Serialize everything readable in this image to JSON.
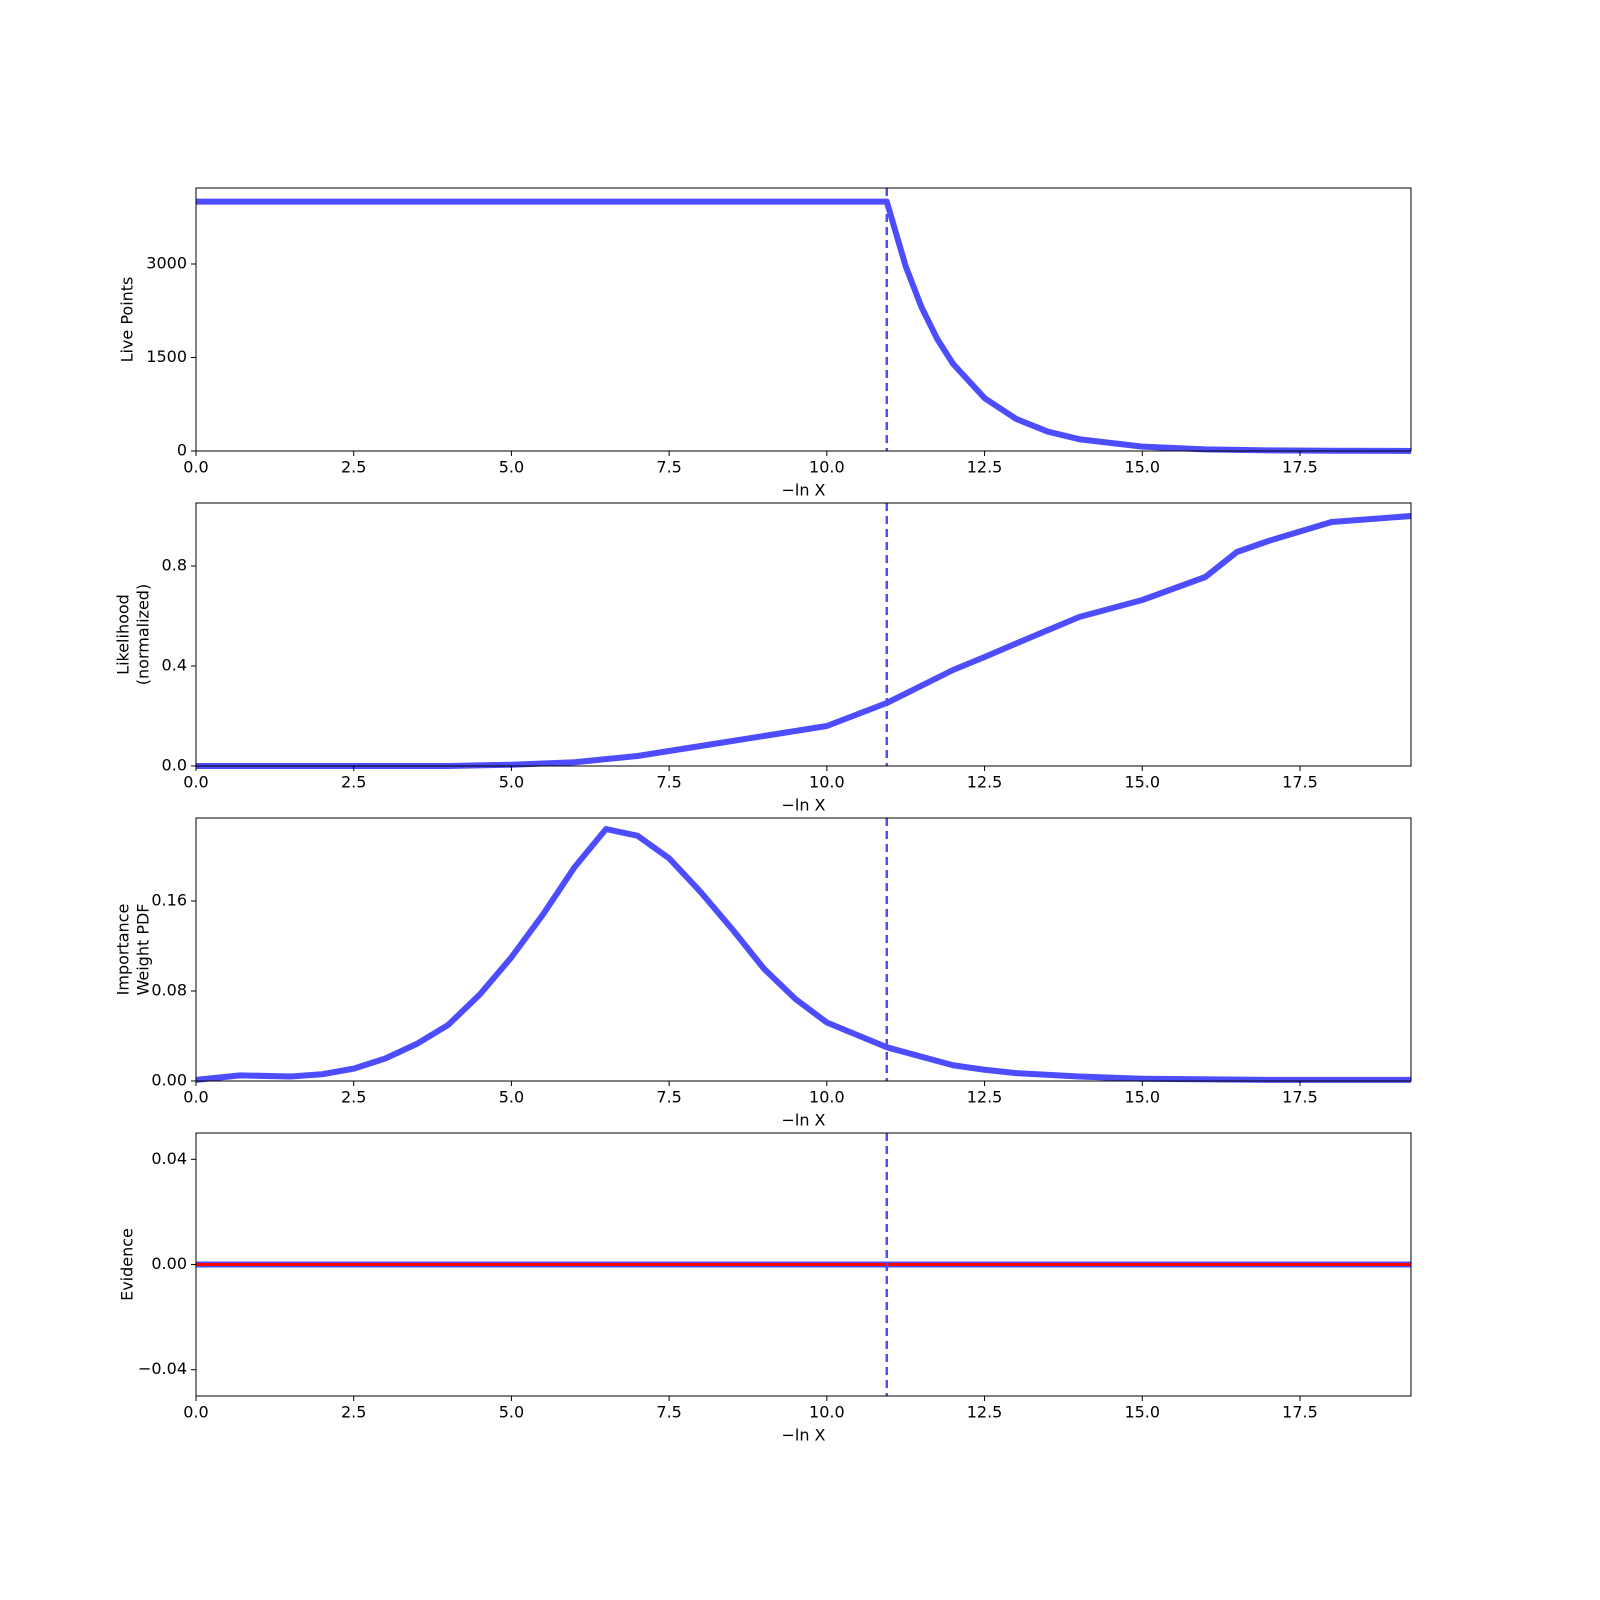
{
  "chart_data": [
    {
      "type": "line",
      "xlabel": "−ln X",
      "ylabel": [
        "Live Points"
      ],
      "x": [
        0,
        10.9,
        10.95,
        11.25,
        11.5,
        11.75,
        12,
        12.5,
        13,
        13.5,
        14,
        15,
        16,
        17,
        18,
        19.26
      ],
      "series": [
        {
          "color": "#4d4dff",
          "values": [
            4000,
            4000,
            4000,
            2963,
            2308,
            1797,
            1400,
            849,
            515,
            312,
            189,
            70,
            26,
            10,
            4,
            1
          ]
        }
      ],
      "xlim": [
        0,
        19.26
      ],
      "xticks": [
        {
          "value": 0,
          "label": "0.0"
        },
        2.5,
        {
          "value": 5,
          "label": "5.0"
        },
        7.5,
        {
          "value": 10,
          "label": "10.0"
        },
        12.5,
        {
          "value": 15,
          "label": "15.0"
        },
        17.5
      ],
      "ylim": [
        0,
        4219
      ],
      "yticks": [
        0,
        1500,
        3000
      ],
      "vline": 10.95,
      "vline_color": "#4d4dff"
    },
    {
      "type": "line",
      "xlabel": "−ln X",
      "ylabel": [
        "Likelihood",
        "(normalized)"
      ],
      "x": [
        0,
        4,
        5,
        6,
        7,
        8,
        9,
        10,
        10.95,
        12,
        12.5,
        13,
        14,
        15,
        16,
        16.5,
        17,
        18,
        19.26
      ],
      "series": [
        {
          "color": "#4d4dff",
          "values": [
            0,
            0,
            0.005,
            0.015,
            0.04,
            0.08,
            0.12,
            0.16,
            0.252,
            0.384,
            0.436,
            0.49,
            0.596,
            0.664,
            0.756,
            0.856,
            0.9,
            0.976,
            1.0
          ]
        }
      ],
      "xlim": [
        0,
        19.26
      ],
      "xticks": [
        {
          "value": 0,
          "label": "0.0"
        },
        2.5,
        {
          "value": 5,
          "label": "5.0"
        },
        7.5,
        {
          "value": 10,
          "label": "10.0"
        },
        12.5,
        {
          "value": 15,
          "label": "15.0"
        },
        17.5
      ],
      "ylim": [
        0,
        1.052
      ],
      "yticks": [
        {
          "value": 0,
          "label": "0.0"
        },
        0.4,
        0.8
      ],
      "vline": 10.95,
      "vline_color": "#4d4dff"
    },
    {
      "type": "line",
      "xlabel": "−ln X",
      "ylabel": [
        "Importance",
        "Weight PDF"
      ],
      "x": [
        0,
        0.7,
        1.5,
        2,
        2.5,
        3,
        3.5,
        4,
        4.5,
        5,
        5.5,
        6,
        6.5,
        7,
        7.5,
        8,
        8.5,
        9,
        9.5,
        10,
        10.95,
        12,
        12.5,
        13,
        14,
        15,
        17,
        19.26
      ],
      "series": [
        {
          "color": "#4d4dff",
          "values": [
            0.001,
            0.005,
            0.004,
            0.006,
            0.011,
            0.02,
            0.033,
            0.05,
            0.077,
            0.11,
            0.148,
            0.19,
            0.224,
            0.218,
            0.198,
            0.168,
            0.135,
            0.1,
            0.073,
            0.052,
            0.03,
            0.014,
            0.01,
            0.007,
            0.004,
            0.002,
            0.001,
            0.001
          ]
        }
      ],
      "xlim": [
        0,
        19.26
      ],
      "xticks": [
        {
          "value": 0,
          "label": "0.0"
        },
        2.5,
        {
          "value": 5,
          "label": "5.0"
        },
        7.5,
        {
          "value": 10,
          "label": "10.0"
        },
        12.5,
        {
          "value": 15,
          "label": "15.0"
        },
        17.5
      ],
      "ylim": [
        0,
        0.2338
      ],
      "yticks": [
        {
          "value": 0,
          "label": "0.00"
        },
        0.08,
        0.16
      ],
      "vline": 10.95,
      "vline_color": "#4d4dff"
    },
    {
      "type": "line",
      "xlabel": "−ln X",
      "ylabel": [
        "Evidence"
      ],
      "x": [
        0,
        19.26
      ],
      "series": [
        {
          "color": "#4d4dff",
          "values": [
            0,
            0
          ]
        },
        {
          "color": "#ff0000",
          "values": [
            0,
            0
          ]
        }
      ],
      "xlim": [
        0,
        19.26
      ],
      "xticks": [
        {
          "value": 0,
          "label": "0.0"
        },
        2.5,
        {
          "value": 5,
          "label": "5.0"
        },
        7.5,
        {
          "value": 10,
          "label": "10.0"
        },
        12.5,
        {
          "value": 15,
          "label": "15.0"
        },
        17.5
      ],
      "ylim": [
        -0.05,
        0.05
      ],
      "yticks": [
        {
          "value": -0.04,
          "label": "−0.04"
        },
        {
          "value": 0,
          "label": "0.00"
        },
        0.04
      ],
      "vline": 10.95,
      "vline_color": "#4d4dff"
    }
  ]
}
